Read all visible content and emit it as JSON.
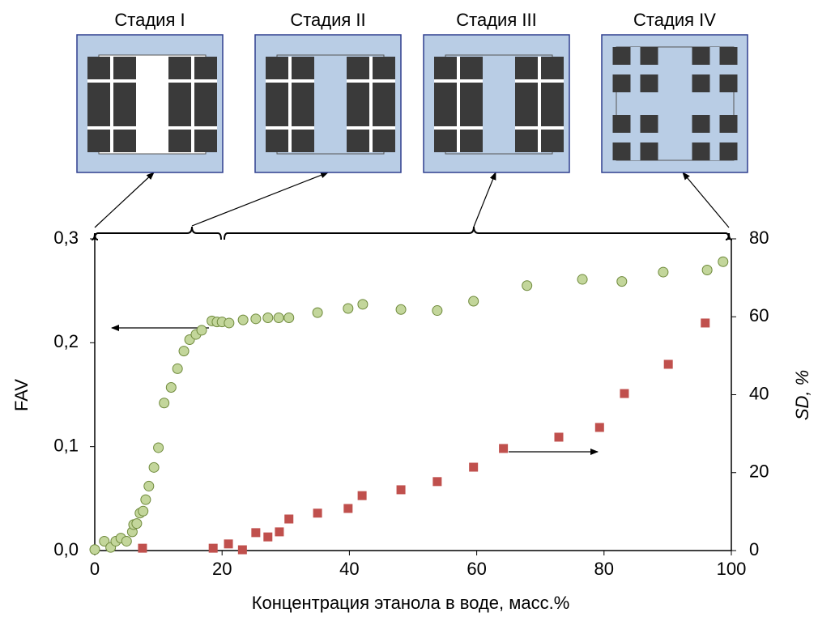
{
  "chart_data": {
    "type": "scatter",
    "xlabel": "Концентрация этанола в воде, масс.%",
    "ylabel": "FAV",
    "y2label": "SD, %",
    "annotations": [
      "Стадия I",
      "Стадия II",
      "Стадия III",
      "Стадия IV"
    ],
    "xlim": [
      0,
      100
    ],
    "xticks": [
      0,
      20,
      40,
      60,
      80,
      100
    ],
    "ylim": [
      0,
      0.3
    ],
    "yticks": [
      {
        "value": 0,
        "label": "0,0"
      },
      {
        "value": 0.1,
        "label": "0,1"
      },
      {
        "value": 0.2,
        "label": "0,2"
      },
      {
        "value": 0.3,
        "label": "0,3"
      }
    ],
    "y2lim": [
      0,
      80
    ],
    "y2ticks": [
      0,
      20,
      40,
      60,
      80
    ],
    "series": [
      {
        "color": "#c3d69b",
        "marker": "circle",
        "x": [
          0,
          1.5,
          2.5,
          3.3,
          4.1,
          5,
          5.9,
          6.1,
          6.6,
          7.1,
          7.6,
          8,
          8.5,
          9.3,
          10,
          10.9,
          12,
          13,
          14,
          14.9,
          15.9,
          16.8,
          18.4,
          19.2,
          20,
          21.1,
          23.3,
          25.3,
          27.2,
          28.9,
          30.5,
          35,
          39.8,
          42.1,
          48.1,
          53.8,
          59.5,
          67.9,
          76.6,
          82.8,
          89.3,
          96.2,
          98.7
        ],
        "values": [
          0.001,
          0.009,
          0.003,
          0.009,
          0.012,
          0.009,
          0.018,
          0.025,
          0.026,
          0.036,
          0.038,
          0.049,
          0.062,
          0.08,
          0.099,
          0.142,
          0.157,
          0.175,
          0.192,
          0.203,
          0.208,
          0.212,
          0.221,
          0.22,
          0.22,
          0.219,
          0.222,
          0.223,
          0.224,
          0.224,
          0.224,
          0.229,
          0.233,
          0.237,
          0.232,
          0.231,
          0.24,
          0.255,
          0.261,
          0.259,
          0.268,
          0.27,
          0.278
        ]
      },
      {
        "color": "#c0504d",
        "marker": "square",
        "axis": "y2",
        "x": [
          7.5,
          18.6,
          21,
          23.2,
          25.3,
          27.2,
          29,
          30.5,
          35,
          39.8,
          42,
          48.1,
          53.8,
          59.5,
          64.2,
          72.9,
          79.3,
          83.2,
          90.1,
          95.9
        ],
        "values": [
          0.6,
          0.6,
          1.7,
          0.2,
          4.6,
          3.5,
          4.8,
          8.1,
          9.6,
          10.8,
          14.1,
          15.6,
          17.7,
          21.4,
          26.2,
          29.1,
          31.6,
          40.3,
          47.8,
          58.4
        ]
      }
    ]
  }
}
